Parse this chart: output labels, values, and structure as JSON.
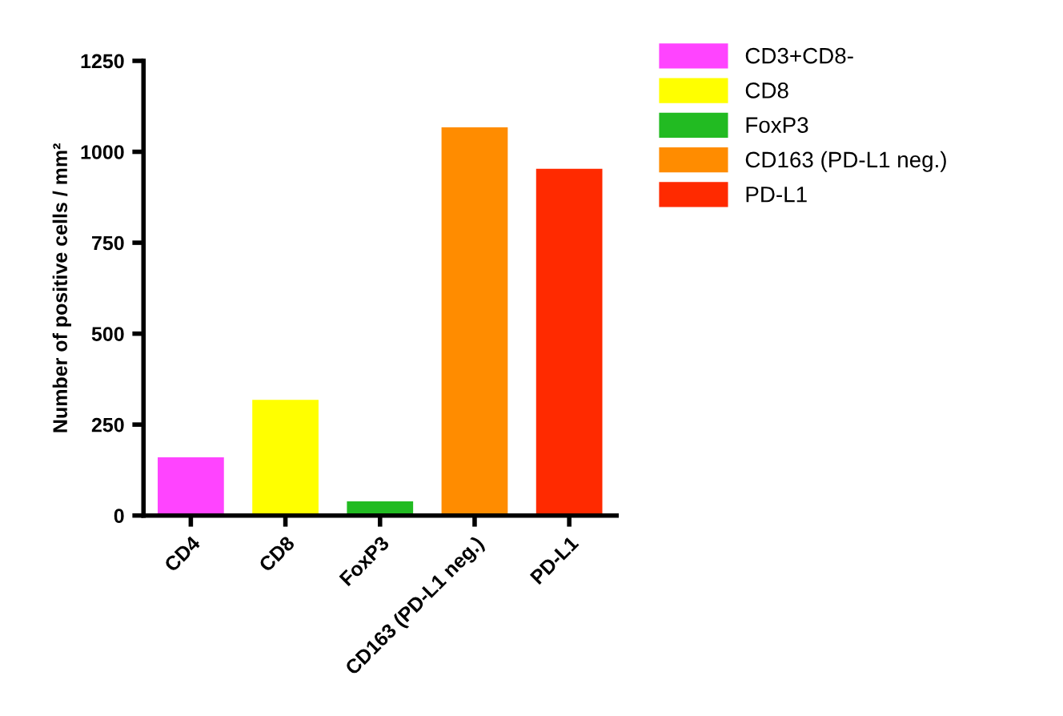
{
  "chart_data": {
    "type": "bar",
    "ylabel": "Number of positive cells / mm²",
    "categories": [
      "CD4",
      "CD8",
      "FoxP3",
      "CD163 (PD-L1 neg.)",
      "PD-L1"
    ],
    "series": [
      {
        "name": "CD3+CD8-",
        "color": "#ff44ff",
        "values": [
          160,
          null,
          null,
          null,
          null
        ]
      },
      {
        "name": "CD8",
        "color": "#ffff00",
        "values": [
          null,
          318,
          null,
          null,
          null
        ]
      },
      {
        "name": "FoxP3",
        "color": "#22bb22",
        "values": [
          null,
          null,
          39,
          null,
          null
        ]
      },
      {
        "name": "CD163 (PD-L1 neg.)",
        "color": "#ff8c00",
        "values": [
          null,
          null,
          null,
          1067,
          null
        ]
      },
      {
        "name": "PD-L1",
        "color": "#ff2a00",
        "values": [
          null,
          null,
          null,
          null,
          953
        ]
      }
    ],
    "ylim": [
      0,
      1250
    ],
    "yticks": [
      0,
      250,
      500,
      750,
      1000,
      1250
    ],
    "grid": false,
    "legend": "top right"
  }
}
